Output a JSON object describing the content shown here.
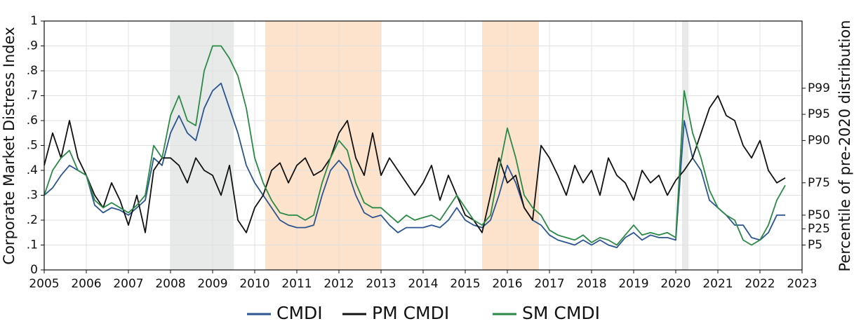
{
  "chart_data": {
    "type": "line",
    "y_label": "Corporate Market Distress Index",
    "y2_label": "Percentile of pre-2020 distribution",
    "xlim": [
      2005,
      2023
    ],
    "xticks": [
      2005,
      2006,
      2007,
      2008,
      2009,
      2010,
      2011,
      2012,
      2013,
      2014,
      2015,
      2016,
      2017,
      2018,
      2019,
      2020,
      2021,
      2022,
      2023
    ],
    "ylim": [
      0,
      1
    ],
    "yticks": [
      0,
      {
        "value": 0.1,
        "label": ".1"
      },
      {
        "value": 0.2,
        "label": ".2"
      },
      {
        "value": 0.3,
        "label": ".3"
      },
      {
        "value": 0.4,
        "label": ".4"
      },
      {
        "value": 0.5,
        "label": ".5"
      },
      {
        "value": 0.6,
        "label": ".6"
      },
      {
        "value": 0.7,
        "label": ".7"
      },
      {
        "value": 0.8,
        "label": ".8"
      },
      {
        "value": 0.9,
        "label": ".9"
      },
      1
    ],
    "y2lim": [
      0,
      1
    ],
    "y2ticks": [
      {
        "value": 0.1,
        "label": "P5"
      },
      {
        "value": 0.165,
        "label": "P25"
      },
      {
        "value": 0.22,
        "label": "P50"
      },
      {
        "value": 0.35,
        "label": "P75"
      },
      {
        "value": 0.52,
        "label": "P90"
      },
      {
        "value": 0.625,
        "label": "P95"
      },
      {
        "value": 0.73,
        "label": "P99"
      }
    ],
    "grid": true,
    "legend": "bottom",
    "shaded_regions": [
      {
        "start": 2008.0,
        "end": 2009.5,
        "color": "#e8eaea"
      },
      {
        "start": 2010.25,
        "end": 2013.0,
        "color": "#fde3cb"
      },
      {
        "start": 2015.4,
        "end": 2016.75,
        "color": "#fde3cb"
      },
      {
        "start": 2020.15,
        "end": 2020.3,
        "color": "#e8eaea"
      }
    ],
    "x": [
      2005.0,
      2005.2,
      2005.4,
      2005.6,
      2005.8,
      2006.0,
      2006.2,
      2006.4,
      2006.6,
      2006.8,
      2007.0,
      2007.2,
      2007.4,
      2007.6,
      2007.8,
      2008.0,
      2008.2,
      2008.4,
      2008.6,
      2008.8,
      2009.0,
      2009.2,
      2009.4,
      2009.6,
      2009.8,
      2010.0,
      2010.2,
      2010.4,
      2010.6,
      2010.8,
      2011.0,
      2011.2,
      2011.4,
      2011.6,
      2011.8,
      2012.0,
      2012.2,
      2012.4,
      2012.6,
      2012.8,
      2013.0,
      2013.2,
      2013.4,
      2013.6,
      2013.8,
      2014.0,
      2014.2,
      2014.4,
      2014.6,
      2014.8,
      2015.0,
      2015.2,
      2015.4,
      2015.6,
      2015.8,
      2016.0,
      2016.2,
      2016.4,
      2016.6,
      2016.8,
      2017.0,
      2017.2,
      2017.4,
      2017.6,
      2017.8,
      2018.0,
      2018.2,
      2018.4,
      2018.6,
      2018.8,
      2019.0,
      2019.2,
      2019.4,
      2019.6,
      2019.8,
      2020.0,
      2020.2,
      2020.4,
      2020.6,
      2020.8,
      2021.0,
      2021.2,
      2021.4,
      2021.6,
      2021.8,
      2022.0,
      2022.2,
      2022.4,
      2022.6
    ],
    "series": [
      {
        "name": "CMDI",
        "color": "#2a5592",
        "values": [
          0.3,
          0.33,
          0.38,
          0.42,
          0.4,
          0.38,
          0.26,
          0.23,
          0.25,
          0.24,
          0.22,
          0.25,
          0.28,
          0.45,
          0.42,
          0.55,
          0.62,
          0.55,
          0.52,
          0.65,
          0.72,
          0.75,
          0.65,
          0.55,
          0.42,
          0.35,
          0.3,
          0.25,
          0.2,
          0.18,
          0.17,
          0.17,
          0.18,
          0.3,
          0.4,
          0.44,
          0.4,
          0.3,
          0.23,
          0.21,
          0.22,
          0.18,
          0.15,
          0.17,
          0.17,
          0.17,
          0.18,
          0.17,
          0.2,
          0.25,
          0.2,
          0.18,
          0.17,
          0.2,
          0.3,
          0.42,
          0.35,
          0.25,
          0.2,
          0.18,
          0.14,
          0.12,
          0.11,
          0.1,
          0.12,
          0.1,
          0.12,
          0.1,
          0.09,
          0.13,
          0.15,
          0.12,
          0.14,
          0.13,
          0.13,
          0.12,
          0.6,
          0.45,
          0.4,
          0.28,
          0.25,
          0.22,
          0.18,
          0.18,
          0.13,
          0.12,
          0.15,
          0.22,
          0.22
        ]
      },
      {
        "name": "PM CMDI",
        "color": "#111111",
        "values": [
          0.42,
          0.55,
          0.45,
          0.6,
          0.45,
          0.38,
          0.3,
          0.25,
          0.35,
          0.28,
          0.18,
          0.3,
          0.15,
          0.4,
          0.45,
          0.45,
          0.42,
          0.35,
          0.45,
          0.4,
          0.38,
          0.3,
          0.42,
          0.2,
          0.15,
          0.25,
          0.3,
          0.4,
          0.43,
          0.35,
          0.42,
          0.45,
          0.38,
          0.4,
          0.45,
          0.55,
          0.6,
          0.45,
          0.38,
          0.55,
          0.38,
          0.45,
          0.4,
          0.35,
          0.3,
          0.35,
          0.42,
          0.28,
          0.38,
          0.3,
          0.22,
          0.2,
          0.15,
          0.3,
          0.45,
          0.35,
          0.38,
          0.25,
          0.2,
          0.5,
          0.45,
          0.38,
          0.3,
          0.42,
          0.35,
          0.4,
          0.3,
          0.45,
          0.38,
          0.35,
          0.28,
          0.4,
          0.35,
          0.38,
          0.3,
          0.36,
          0.4,
          0.45,
          0.55,
          0.65,
          0.7,
          0.62,
          0.6,
          0.5,
          0.45,
          0.52,
          0.4,
          0.35,
          0.37
        ]
      },
      {
        "name": "SM CMDI",
        "color": "#2a8a45",
        "values": [
          0.3,
          0.4,
          0.45,
          0.48,
          0.4,
          0.38,
          0.28,
          0.25,
          0.27,
          0.25,
          0.23,
          0.26,
          0.3,
          0.5,
          0.45,
          0.62,
          0.7,
          0.6,
          0.58,
          0.8,
          0.9,
          0.9,
          0.85,
          0.78,
          0.65,
          0.45,
          0.35,
          0.28,
          0.23,
          0.22,
          0.22,
          0.2,
          0.22,
          0.35,
          0.45,
          0.52,
          0.48,
          0.35,
          0.27,
          0.25,
          0.25,
          0.22,
          0.19,
          0.22,
          0.2,
          0.21,
          0.22,
          0.2,
          0.25,
          0.3,
          0.25,
          0.2,
          0.18,
          0.22,
          0.4,
          0.57,
          0.45,
          0.3,
          0.25,
          0.22,
          0.16,
          0.14,
          0.13,
          0.12,
          0.14,
          0.11,
          0.13,
          0.12,
          0.1,
          0.14,
          0.18,
          0.14,
          0.15,
          0.14,
          0.15,
          0.13,
          0.72,
          0.55,
          0.45,
          0.32,
          0.25,
          0.22,
          0.2,
          0.12,
          0.1,
          0.12,
          0.18,
          0.28,
          0.34
        ]
      }
    ]
  }
}
